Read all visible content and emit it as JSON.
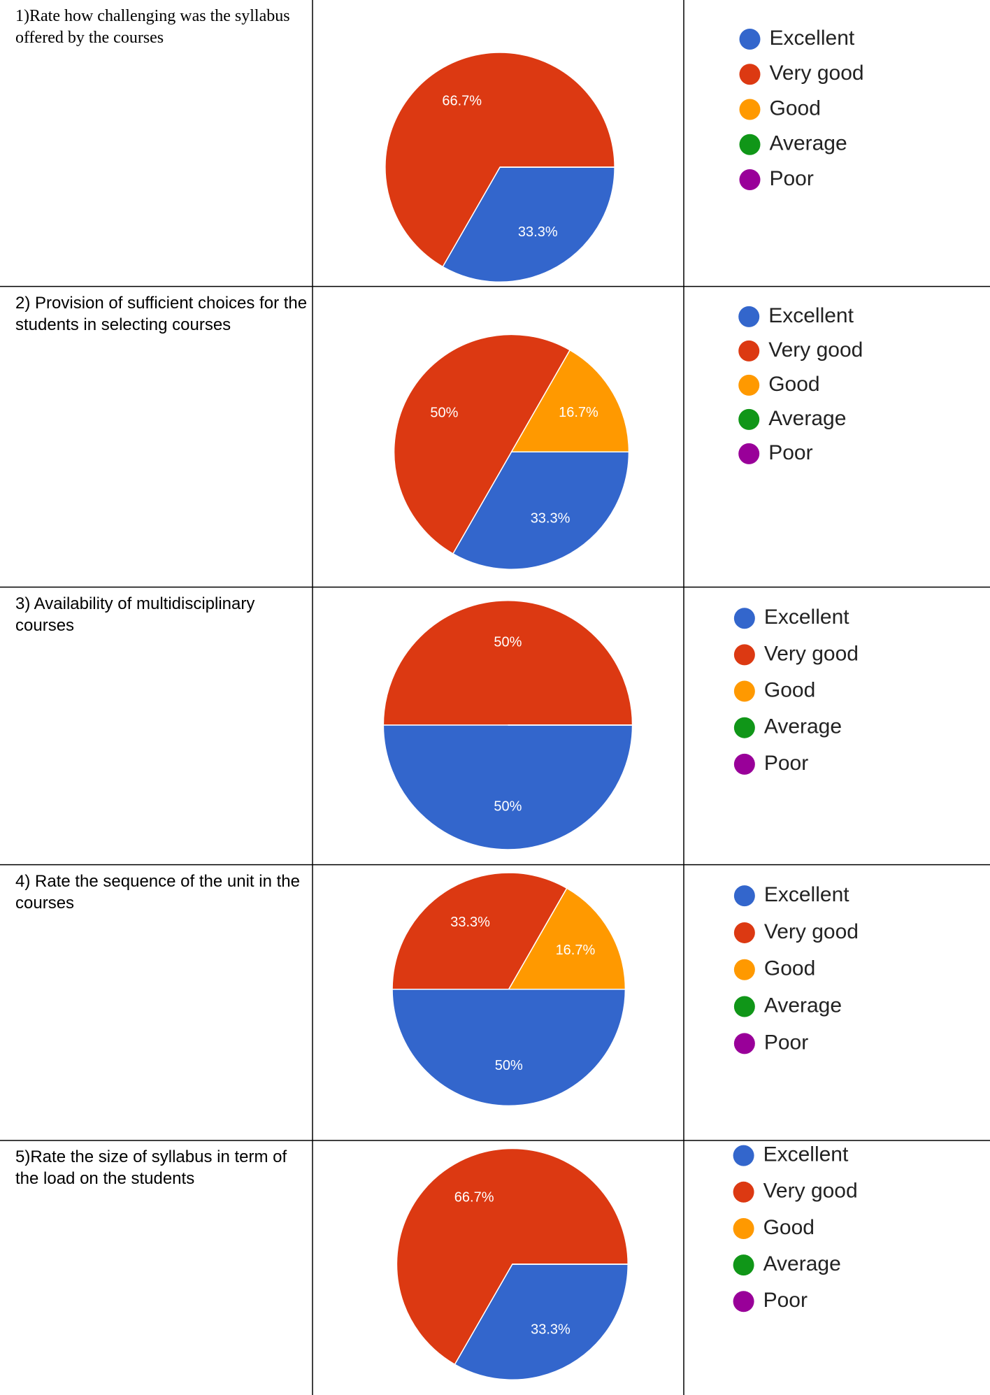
{
  "chart_data": [
    {
      "type": "pie",
      "title": "1)Rate how challenging was the syllabus offered by the courses",
      "categories": [
        "Excellent",
        "Very good",
        "Good",
        "Average",
        "Poor"
      ],
      "values": [
        33.3,
        66.7,
        0,
        0,
        0
      ],
      "value_labels": [
        "33.3%",
        "66.7%",
        null,
        null,
        null
      ],
      "colors": [
        "#3366cc",
        "#dc3912",
        "#ff9900",
        "#109618",
        "#990099"
      ]
    },
    {
      "type": "pie",
      "title": "2) Provision of sufficient choices for the students in selecting courses",
      "categories": [
        "Excellent",
        "Very good",
        "Good",
        "Average",
        "Poor"
      ],
      "values": [
        33.3,
        50,
        16.7,
        0,
        0
      ],
      "value_labels": [
        "33.3%",
        "50%",
        "16.7%",
        null,
        null
      ],
      "colors": [
        "#3366cc",
        "#dc3912",
        "#ff9900",
        "#109618",
        "#990099"
      ]
    },
    {
      "type": "pie",
      "title": " 3) Availability of multidisciplinary courses",
      "categories": [
        "Excellent",
        "Very good",
        "Good",
        "Average",
        "Poor"
      ],
      "values": [
        50,
        50,
        0,
        0,
        0
      ],
      "value_labels": [
        "50%",
        "50%",
        null,
        null,
        null
      ],
      "colors": [
        "#3366cc",
        "#dc3912",
        "#ff9900",
        "#109618",
        "#990099"
      ]
    },
    {
      "type": "pie",
      "title": "4) Rate the sequence of the unit in the courses",
      "categories": [
        "Excellent",
        "Very good",
        "Good",
        "Average",
        "Poor"
      ],
      "values": [
        50,
        33.3,
        16.7,
        0,
        0
      ],
      "value_labels": [
        "50%",
        "33.3%",
        "16.7%",
        null,
        null
      ],
      "colors": [
        "#3366cc",
        "#dc3912",
        "#ff9900",
        "#109618",
        "#990099"
      ]
    },
    {
      "type": "pie",
      "title": "5)Rate the size of syllabus in term of the load on the students",
      "categories": [
        "Excellent",
        "Very good",
        "Good",
        "Average",
        "Poor"
      ],
      "values": [
        33.3,
        66.7,
        0,
        0,
        0
      ],
      "value_labels": [
        "33.3%",
        "66.7%",
        null,
        null,
        null
      ],
      "colors": [
        "#3366cc",
        "#dc3912",
        "#ff9900",
        "#109618",
        "#990099"
      ]
    }
  ]
}
